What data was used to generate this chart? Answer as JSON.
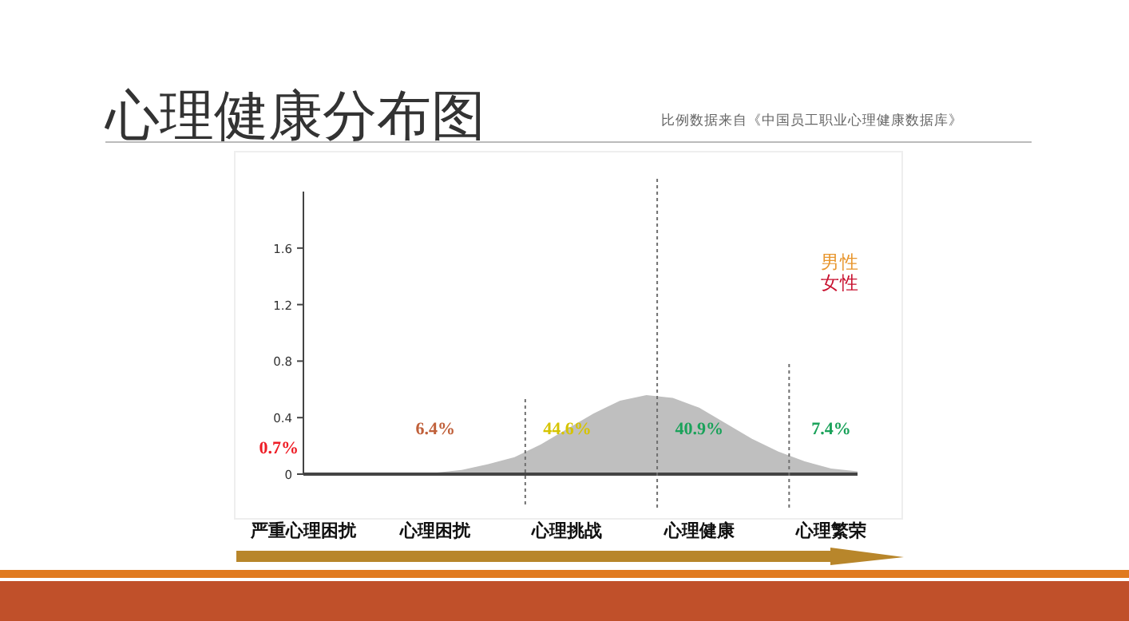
{
  "chart_data": {
    "type": "area",
    "title": "心理健康分布图",
    "categories": [
      "严重心理困扰",
      null,
      null,
      null,
      null,
      "心理困扰",
      null,
      null,
      null,
      null,
      "心理挑战",
      null,
      null,
      null,
      null,
      "心理健康",
      null,
      null,
      null,
      null,
      "心理繁荣",
      null
    ],
    "series": [
      {
        "color": "#bfbfbf",
        "values": [
          0,
          0,
          0,
          0,
          0,
          0.01,
          0.03,
          0.07,
          0.12,
          0.21,
          0.32,
          0.43,
          0.52,
          0.56,
          0.54,
          0.47,
          0.36,
          0.25,
          0.16,
          0.09,
          0.04,
          0.02
        ]
      },
      {
        "name": "男性",
        "color": "#e8962e",
        "values": [
          null,
          null,
          null,
          null,
          null,
          null,
          null,
          null,
          null,
          null,
          null,
          null,
          null,
          null,
          null,
          null,
          null,
          null,
          null,
          null,
          null,
          null
        ]
      },
      {
        "name": "女性",
        "color": "#c8102e",
        "values": [
          null,
          null,
          null,
          null,
          null,
          null,
          null,
          null,
          null,
          null,
          null,
          null,
          null,
          null,
          null,
          null,
          null,
          null,
          null,
          null,
          null,
          null
        ]
      }
    ],
    "ylim": [
      0,
      2
    ],
    "yticks": [
      0,
      0.4,
      0.8,
      1.2,
      1.6
    ],
    "annotations": [
      "比例数据来自《中国员工职业心理健康数据库》",
      "0.7%",
      "6.4%",
      "44.6%",
      "40.9%",
      "7.4%"
    ]
  }
}
